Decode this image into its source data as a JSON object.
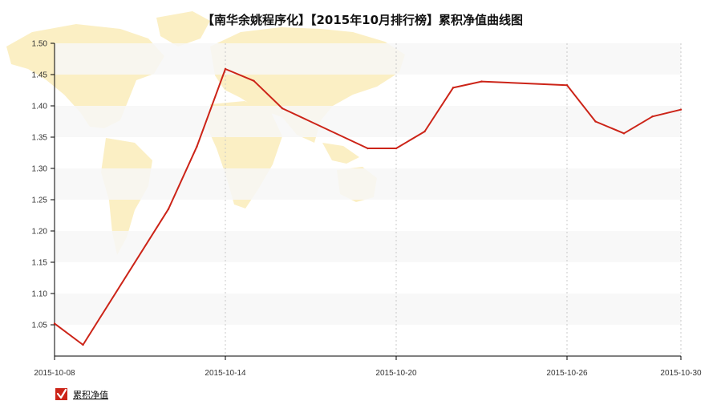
{
  "chart_data": {
    "type": "line",
    "title": "【南华余姚程序化】【2015年10月排行榜】累积净值曲线图",
    "xlabel": "",
    "ylabel": "",
    "x_tick_labels": [
      "2015-10-08",
      "2015-10-14",
      "2015-10-20",
      "2015-10-26",
      "2015-10-30"
    ],
    "y_tick_labels": [
      "1.05",
      "1.10",
      "1.15",
      "1.20",
      "1.25",
      "1.30",
      "1.35",
      "1.40",
      "1.45",
      "1.50"
    ],
    "ylim": [
      1.0,
      1.5
    ],
    "xlim": [
      "2015-10-08",
      "2015-10-30"
    ],
    "grid": "vertical dotted lines at labeled dates, alternating horizontal bands",
    "legend_position": "bottom-left",
    "series": [
      {
        "name": "累积净值",
        "color": "#cc2418",
        "points": [
          {
            "x": "2015-10-08",
            "y": 1.052
          },
          {
            "x": "2015-10-09",
            "y": 1.018
          },
          {
            "x": "2015-10-12",
            "y": 1.235
          },
          {
            "x": "2015-10-13",
            "y": 1.335
          },
          {
            "x": "2015-10-14",
            "y": 1.459
          },
          {
            "x": "2015-10-15",
            "y": 1.44
          },
          {
            "x": "2015-10-16",
            "y": 1.396
          },
          {
            "x": "2015-10-19",
            "y": 1.332
          },
          {
            "x": "2015-10-20",
            "y": 1.332
          },
          {
            "x": "2015-10-21",
            "y": 1.359
          },
          {
            "x": "2015-10-22",
            "y": 1.429
          },
          {
            "x": "2015-10-23",
            "y": 1.439
          },
          {
            "x": "2015-10-26",
            "y": 1.433
          },
          {
            "x": "2015-10-27",
            "y": 1.375
          },
          {
            "x": "2015-10-28",
            "y": 1.356
          },
          {
            "x": "2015-10-29",
            "y": 1.383
          },
          {
            "x": "2015-10-30",
            "y": 1.394
          }
        ]
      }
    ],
    "background_map_color": "#fbefc4",
    "band_color": "#f7f7f7"
  },
  "legend": {
    "label": "累积净值",
    "checkbox_color": "#cc2418"
  }
}
